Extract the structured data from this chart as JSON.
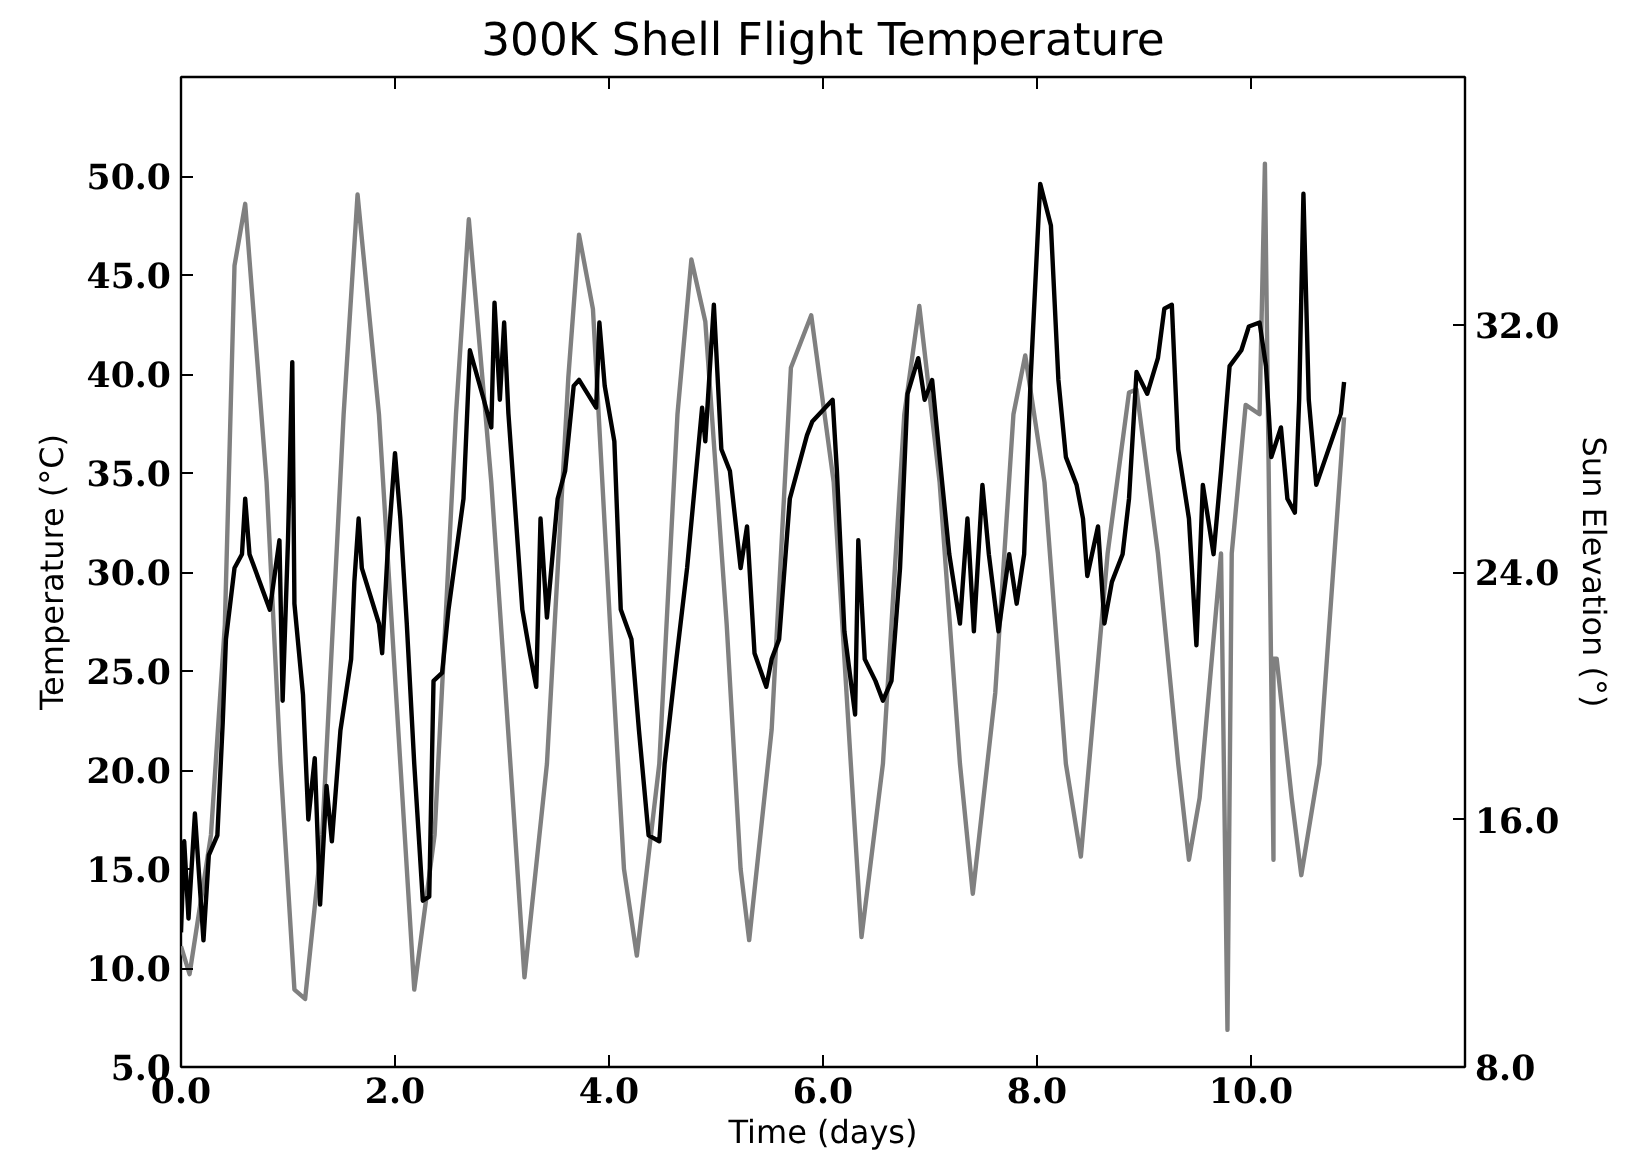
{
  "chart_data": {
    "type": "line",
    "title": "300K Shell Flight Temperature",
    "xlabel": "Time (days)",
    "ylabel": "Temperature (°C)",
    "y2label": "Sun Elevation (°)",
    "xlim": [
      0,
      12
    ],
    "xticks": [
      {
        "value": 0,
        "label": "0.0"
      },
      {
        "value": 2,
        "label": "2.0"
      },
      {
        "value": 4,
        "label": "4.0"
      },
      {
        "value": 6,
        "label": "6.0"
      },
      {
        "value": 8,
        "label": "8.0"
      },
      {
        "value": 10,
        "label": "10.0"
      }
    ],
    "ylim": [
      5,
      55
    ],
    "yticks": [
      {
        "value": 5,
        "label": "5.0"
      },
      {
        "value": 10,
        "label": "10.0"
      },
      {
        "value": 15,
        "label": "15.0"
      },
      {
        "value": 20,
        "label": "20.0"
      },
      {
        "value": 25,
        "label": "25.0"
      },
      {
        "value": 30,
        "label": "30.0"
      },
      {
        "value": 35,
        "label": "35.0"
      },
      {
        "value": 40,
        "label": "40.0"
      },
      {
        "value": 45,
        "label": "45.0"
      },
      {
        "value": 50,
        "label": "50.0"
      }
    ],
    "y2lim": [
      8,
      40
    ],
    "y2ticks": [
      {
        "value": 8,
        "label": "8.0"
      },
      {
        "value": 16,
        "label": "16.0"
      },
      {
        "value": 24,
        "label": "24.0"
      },
      {
        "value": 32,
        "label": "32.0"
      }
    ],
    "grid": false,
    "marker": "none",
    "line_style": "solid",
    "series": [
      {
        "color": "#808080",
        "axis": "y2",
        "x": [
          0,
          0.08,
          0.28,
          0.41,
          0.5,
          0.6,
          0.8,
          0.93,
          1.06,
          1.16,
          1.32,
          1.52,
          1.65,
          1.85,
          2.05,
          2.18,
          2.37,
          2.57,
          2.69,
          2.9,
          3.1,
          3.21,
          3.42,
          3.62,
          3.72,
          3.85,
          4.01,
          4.14,
          4.26,
          4.47,
          4.64,
          4.77,
          4.9,
          5.1,
          5.23,
          5.31,
          5.52,
          5.7,
          5.89,
          6.1,
          6.26,
          6.36,
          6.56,
          6.76,
          6.9,
          7.09,
          7.28,
          7.4,
          7.61,
          7.78,
          7.89,
          8.07,
          8.27,
          8.41,
          8.66,
          8.86,
          8.93,
          9.13,
          9.32,
          9.42,
          9.52,
          9.72,
          9.78,
          9.82,
          9.95,
          10.08,
          10.13,
          10.21,
          10.21,
          10.24,
          10.38,
          10.47,
          10.64,
          10.87
        ],
        "values": [
          11.9,
          11.0,
          15.5,
          22.3,
          33.9,
          35.9,
          26.9,
          17.8,
          10.5,
          10.2,
          15.5,
          29.1,
          36.2,
          29.1,
          17.8,
          10.5,
          15.5,
          29.1,
          35.4,
          26.9,
          16.7,
          10.9,
          17.8,
          30.3,
          34.9,
          32.5,
          22.3,
          14.4,
          11.6,
          17.8,
          29.1,
          34.1,
          32.1,
          22.3,
          14.4,
          12.1,
          18.9,
          30.6,
          32.3,
          26.9,
          17.8,
          12.2,
          17.8,
          29.1,
          32.6,
          26.9,
          17.8,
          13.6,
          20.1,
          29.1,
          31.0,
          26.9,
          17.8,
          14.8,
          24.6,
          29.8,
          29.9,
          24.6,
          17.8,
          14.7,
          16.7,
          24.6,
          9.2,
          24.6,
          29.4,
          29.1,
          37.2,
          14.7,
          21.2,
          21.2,
          16.7,
          14.2,
          17.8,
          29.0
        ]
      },
      {
        "color": "#000000",
        "x": [
          0,
          0.03,
          0.07,
          0.13,
          0.21,
          0.26,
          0.34,
          0.39,
          0.42,
          0.5,
          0.57,
          0.6,
          0.64,
          0.83,
          0.92,
          0.95,
          1.0,
          1.04,
          1.06,
          1.14,
          1.19,
          1.25,
          1.3,
          1.36,
          1.41,
          1.49,
          1.59,
          1.62,
          1.66,
          1.69,
          1.85,
          1.88,
          1.93,
          2.0,
          2.05,
          2.11,
          2.18,
          2.26,
          2.32,
          2.36,
          2.44,
          2.5,
          2.64,
          2.7,
          2.83,
          2.9,
          2.93,
          2.98,
          3.02,
          3.06,
          3.13,
          3.19,
          3.26,
          3.32,
          3.36,
          3.42,
          3.52,
          3.59,
          3.67,
          3.72,
          3.88,
          3.91,
          3.96,
          4.05,
          4.11,
          4.21,
          4.28,
          4.37,
          4.47,
          4.52,
          4.63,
          4.73,
          4.87,
          4.9,
          4.98,
          5.05,
          5.13,
          5.23,
          5.29,
          5.36,
          5.47,
          5.52,
          5.59,
          5.69,
          5.85,
          5.9,
          6.09,
          6.13,
          6.2,
          6.3,
          6.33,
          6.39,
          6.49,
          6.56,
          6.64,
          6.72,
          6.79,
          6.89,
          6.95,
          7.02,
          7.09,
          7.18,
          7.28,
          7.35,
          7.41,
          7.49,
          7.55,
          7.64,
          7.74,
          7.81,
          7.88,
          7.94,
          8.03,
          8.13,
          8.2,
          8.27,
          8.37,
          8.43,
          8.47,
          8.57,
          8.63,
          8.7,
          8.8,
          8.86,
          8.93,
          9.03,
          9.13,
          9.19,
          9.26,
          9.32,
          9.42,
          9.49,
          9.55,
          9.65,
          9.72,
          9.8,
          9.91,
          9.98,
          10.08,
          10.14,
          10.19,
          10.28,
          10.34,
          10.41,
          10.45,
          10.49,
          10.54,
          10.61,
          10.84,
          10.87
        ],
        "values": [
          11.8,
          16.4,
          12.5,
          17.8,
          11.4,
          15.7,
          16.7,
          22.4,
          26.6,
          30.2,
          30.9,
          33.7,
          30.9,
          28.1,
          31.6,
          23.5,
          31.6,
          40.6,
          28.4,
          23.8,
          17.5,
          20.6,
          13.2,
          19.2,
          16.4,
          22.0,
          25.6,
          29.5,
          32.7,
          30.2,
          27.4,
          25.9,
          30.9,
          36.0,
          32.7,
          27.4,
          20.3,
          13.4,
          13.6,
          24.5,
          24.9,
          28.1,
          33.7,
          41.2,
          38.7,
          37.3,
          43.6,
          38.7,
          42.6,
          38.0,
          32.7,
          28.1,
          25.9,
          24.2,
          32.7,
          27.7,
          33.7,
          35.1,
          39.4,
          39.7,
          38.3,
          42.6,
          39.4,
          36.6,
          28.1,
          26.6,
          22.0,
          16.7,
          16.4,
          20.3,
          25.6,
          30.2,
          38.3,
          36.6,
          43.5,
          36.2,
          35.1,
          30.2,
          32.3,
          25.9,
          24.2,
          25.6,
          26.6,
          33.7,
          36.9,
          37.6,
          38.7,
          35.1,
          27.0,
          22.8,
          31.6,
          25.6,
          24.5,
          23.5,
          24.5,
          30.2,
          39.0,
          40.8,
          38.7,
          39.7,
          35.8,
          30.9,
          27.4,
          32.7,
          27.0,
          34.4,
          30.9,
          27.0,
          30.9,
          28.4,
          30.9,
          39.7,
          49.6,
          47.5,
          39.7,
          35.8,
          34.4,
          32.7,
          29.8,
          32.3,
          27.4,
          29.5,
          30.9,
          33.7,
          40.1,
          39.0,
          40.8,
          43.3,
          43.5,
          36.2,
          32.7,
          26.3,
          34.4,
          30.9,
          35.1,
          40.4,
          41.2,
          42.4,
          42.6,
          40.4,
          35.8,
          37.3,
          33.7,
          33.0,
          38.7,
          49.1,
          38.7,
          34.4,
          38.0,
          39.6
        ]
      }
    ]
  }
}
